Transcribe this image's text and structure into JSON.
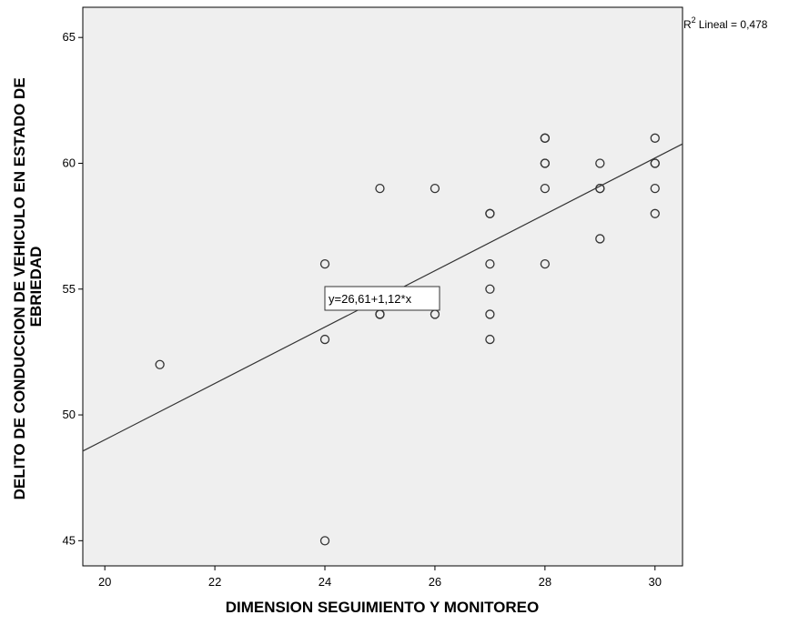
{
  "chart_data": {
    "type": "scatter",
    "title": "",
    "xlabel": "DIMENSION SEGUIMIENTO Y MONITOREO",
    "ylabel": [
      "DELITO DE CONDUCCION DE VEHICULO EN ESTADO DE",
      "EBRIEDAD"
    ],
    "xlim": [
      19.6,
      30.5
    ],
    "ylim": [
      44.0,
      66.2
    ],
    "x_ticks": [
      20,
      22,
      24,
      26,
      28,
      30
    ],
    "y_ticks": [
      45,
      50,
      55,
      60,
      65
    ],
    "grid": false,
    "points": [
      {
        "x": 21,
        "y": 52
      },
      {
        "x": 24,
        "y": 56
      },
      {
        "x": 24,
        "y": 53
      },
      {
        "x": 24,
        "y": 45
      },
      {
        "x": 25,
        "y": 59
      },
      {
        "x": 25,
        "y": 54
      },
      {
        "x": 25,
        "y": 54
      },
      {
        "x": 26,
        "y": 59
      },
      {
        "x": 26,
        "y": 54
      },
      {
        "x": 27,
        "y": 58
      },
      {
        "x": 27,
        "y": 58
      },
      {
        "x": 27,
        "y": 56
      },
      {
        "x": 27,
        "y": 55
      },
      {
        "x": 27,
        "y": 54
      },
      {
        "x": 27,
        "y": 53
      },
      {
        "x": 28,
        "y": 61
      },
      {
        "x": 28,
        "y": 61
      },
      {
        "x": 28,
        "y": 60
      },
      {
        "x": 28,
        "y": 60
      },
      {
        "x": 28,
        "y": 59
      },
      {
        "x": 28,
        "y": 56
      },
      {
        "x": 29,
        "y": 60
      },
      {
        "x": 29,
        "y": 59
      },
      {
        "x": 29,
        "y": 59
      },
      {
        "x": 29,
        "y": 57
      },
      {
        "x": 30,
        "y": 61
      },
      {
        "x": 30,
        "y": 60
      },
      {
        "x": 30,
        "y": 60
      },
      {
        "x": 30,
        "y": 59
      },
      {
        "x": 30,
        "y": 58
      }
    ],
    "fit_line": {
      "intercept": 26.61,
      "slope": 1.12
    },
    "fit_label": "y=26,61+1,12*x",
    "r2_label": "Lineal = 0,478",
    "r2_prefix": "R",
    "r2_superscript": "2",
    "colors": {
      "plot_background": "#efefef",
      "marker_stroke": "#333333",
      "line": "#333333",
      "axis": "#000000"
    }
  }
}
